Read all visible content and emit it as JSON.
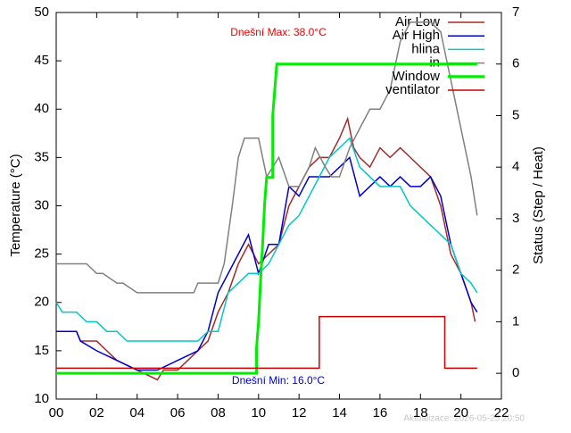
{
  "chart_data": {
    "type": "line",
    "ylabel": "Temperature (°C)",
    "y2label": "Status (Step / Heat)",
    "xlim": [
      0,
      22
    ],
    "xticks": [
      {
        "value": 0,
        "label": "00"
      },
      {
        "value": 2,
        "label": "02"
      },
      {
        "value": 4,
        "label": "04"
      },
      {
        "value": 6,
        "label": "06"
      },
      {
        "value": 8,
        "label": "08"
      },
      10,
      12,
      14,
      16,
      18,
      20,
      22
    ],
    "ylim": [
      10,
      50
    ],
    "yticks": [
      10,
      15,
      20,
      25,
      30,
      35,
      40,
      45,
      50
    ],
    "y2lim": [
      -0.5,
      7
    ],
    "y2ticks": [
      0,
      1,
      2,
      3,
      4,
      5,
      6,
      7
    ],
    "grid": false,
    "legend": "top-right",
    "annotations": [
      "Dnešní Max: 38.0°C",
      "Dnešní Min: 16.0°C",
      "Aktualizace: 2026-05-25 20:50"
    ],
    "series": [
      {
        "name": "Air Low",
        "color": "#a52a2a",
        "x": [
          0,
          1,
          1.2,
          2,
          2.5,
          3,
          4,
          5,
          5.3,
          6,
          6.5,
          7,
          7.5,
          8,
          8.5,
          9,
          9.5,
          10,
          10.5,
          11,
          11.5,
          12,
          12.5,
          13,
          13.5,
          14,
          14.4,
          14.7,
          15,
          15.5,
          16,
          16.5,
          17,
          17.5,
          18,
          18.5,
          19,
          19.5,
          20,
          20.5,
          20.7
        ],
        "values": [
          17,
          17,
          16,
          16,
          15,
          14,
          13,
          12,
          13,
          13,
          14,
          15,
          16,
          19,
          21,
          24,
          26,
          24,
          25,
          26,
          30,
          32,
          34,
          35,
          35,
          37,
          39,
          36,
          35,
          34,
          36,
          35,
          36,
          35,
          34,
          33,
          30,
          25,
          23,
          20,
          18
        ]
      },
      {
        "name": "Air High",
        "color": "#0000cc",
        "x": [
          0,
          1,
          1.2,
          2,
          3,
          4,
          5,
          6,
          7,
          7.5,
          8,
          8.5,
          9,
          9.5,
          10,
          10.5,
          11,
          11.5,
          12,
          12.5,
          13,
          13.5,
          14,
          14.5,
          15,
          15.5,
          16,
          16.5,
          17,
          17.5,
          18,
          18.5,
          19,
          19.5,
          20,
          20.5,
          20.8
        ],
        "values": [
          17,
          17,
          16,
          15,
          14,
          13,
          13,
          14,
          15,
          17,
          21,
          23,
          25,
          27,
          23,
          26,
          26,
          32,
          31,
          33,
          33,
          33,
          34,
          35,
          31,
          32,
          33,
          32,
          33,
          32,
          32,
          33,
          31,
          26,
          23,
          20,
          19
        ]
      },
      {
        "name": "hlina",
        "color": "#00c8c8",
        "x": [
          0,
          0.3,
          1,
          1.5,
          2,
          2.5,
          3,
          3.5,
          4,
          6,
          7,
          7.5,
          8,
          8.5,
          9,
          9.5,
          10,
          10.5,
          11,
          11.5,
          12,
          12.5,
          13,
          13.5,
          14,
          14.5,
          15,
          15.5,
          16,
          16.5,
          17,
          17.5,
          18,
          18.5,
          19,
          19.5,
          20,
          20.5,
          20.8
        ],
        "values": [
          20,
          19,
          19,
          18,
          18,
          17,
          17,
          16,
          16,
          16,
          16,
          17,
          17,
          21,
          22,
          23,
          23,
          24,
          26,
          28,
          29,
          31,
          33,
          35,
          36,
          37,
          34,
          33,
          32,
          32,
          32,
          30,
          29,
          28,
          27,
          26,
          23,
          22,
          21
        ]
      },
      {
        "name": "in",
        "color": "#808080",
        "x": [
          0,
          1.5,
          2,
          2.3,
          3,
          3.3,
          4,
          6,
          6.8,
          7,
          8,
          8.3,
          8.7,
          9,
          9.3,
          10,
          10.4,
          10.7,
          11,
          11.5,
          12,
          12.5,
          12.8,
          13.3,
          13.6,
          14,
          14.5,
          15,
          15.5,
          16,
          16.5,
          17,
          17.5,
          18,
          18.5,
          19,
          19.5,
          20,
          20.5,
          20.8
        ],
        "values": [
          24,
          24,
          23,
          23,
          22,
          22,
          21,
          21,
          21,
          22,
          22,
          24,
          30,
          35,
          37,
          37,
          33,
          34,
          35,
          32,
          32,
          34,
          36,
          34,
          33,
          33,
          36,
          38,
          40,
          40,
          42,
          47,
          49,
          49,
          49,
          48,
          43,
          38,
          33,
          29
        ]
      },
      {
        "name": "Window",
        "color": "#00ee00",
        "axis": "y2",
        "x": [
          0,
          9.9,
          9.9,
          10,
          10.1,
          10.2,
          10.3,
          10.4,
          10.7,
          10.7,
          10.9,
          20.8
        ],
        "values": [
          0,
          0,
          0.5,
          1,
          1.8,
          2.5,
          3.3,
          3.8,
          3.8,
          5,
          6,
          6
        ]
      },
      {
        "name": "ventilator",
        "color": "#cc0000",
        "axis": "y2",
        "x": [
          0,
          13,
          13,
          19.2,
          19.2,
          20.8
        ],
        "values": [
          0.1,
          0.1,
          1.1,
          1.1,
          0.1,
          0.1
        ]
      }
    ]
  }
}
